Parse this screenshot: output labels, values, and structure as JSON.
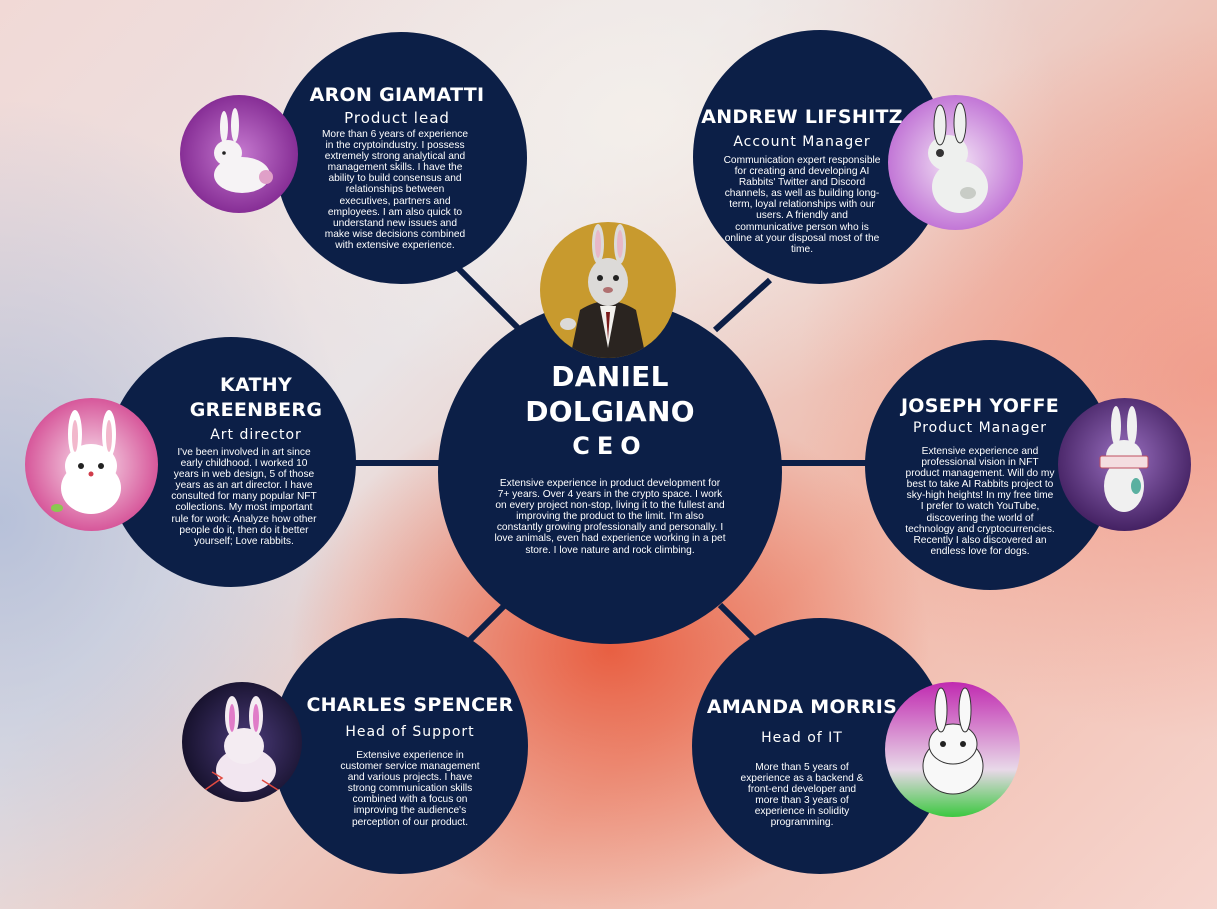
{
  "ceo": {
    "name_line1": "DANIEL",
    "name_line2": "DOLGIANO",
    "role": "CEO",
    "bio": "Extensive experience in product development for 7+ years. Over 4 years in the crypto space. I work on every project non-stop, living it to the fullest and improving the product to the limit. I'm also constantly growing professionally and personally. I love animals, even had experience working in a pet store. I love nature and rock climbing.",
    "avatar_icon": "rabbit-in-suit"
  },
  "members": {
    "aron": {
      "name": "ARON GIAMATTI",
      "role": "Product lead",
      "bio": "More than 6 years of experience in the cryptoindustry. I possess extremely strong analytical and management skills. I have the ability to build consensus and relationships between executives, partners and employees. I am also quick to understand new issues and make wise decisions combined with extensive experience.",
      "avatar_icon": "rabbit-icon",
      "avatar_color": "#8a2a9a"
    },
    "andrew": {
      "name": "ANDREW LIFSHITZ",
      "role": "Account Manager",
      "bio": "Communication expert responsible for creating and developing AI Rabbits' Twitter and Discord channels, as well as building long-term, loyal relationships with our users. A friendly and communicative person who is online at your disposal most of the time.",
      "avatar_icon": "rabbit-icon",
      "avatar_color": "#c96ad8"
    },
    "kathy": {
      "name_line1": "KATHY",
      "name_line2": "GREENBERG",
      "role": "Art director",
      "bio": "I've been involved in art since early childhood. I worked 10 years in web design, 5 of those years as an art director. I have consulted for many popular NFT collections. My most important rule for work: Analyze how other people do it, then do it better yourself; Love rabbits.",
      "avatar_icon": "rabbit-icon",
      "avatar_color": "#d0408c"
    },
    "joseph": {
      "name": "JOSEPH YOFFE",
      "role": "Product Manager",
      "bio": "Extensive experience and professional vision in NFT product management. Will do my best to take AI Rabbits project to sky-high heights! In my free time I prefer to watch YouTube, discovering the world of technology and cryptocurrencies. Recently I also discovered an endless love for dogs.",
      "avatar_icon": "rabbit-icon",
      "avatar_color": "#6a2a8a"
    },
    "charles": {
      "name": "CHARLES SPENCER",
      "role": "Head of Support",
      "bio": "Extensive experience in customer service management and various projects. I have strong communication skills combined with a focus on improving the audience's perception of our product.",
      "avatar_icon": "rabbit-icon",
      "avatar_color": "#1d1838"
    },
    "amanda": {
      "name": "AMANDA MORRIS",
      "role": "Head of IT",
      "bio": "More than 5 years of experience as a backend & front-end developer and more than 3 years of experience in solidity programming.",
      "avatar_icon": "rabbit-icon",
      "avatar_color": "#b0309a"
    }
  }
}
